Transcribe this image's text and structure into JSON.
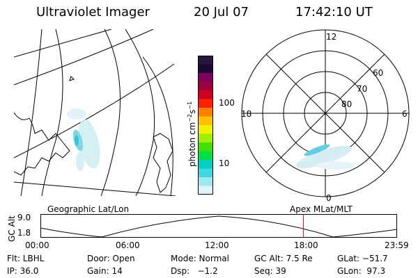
{
  "header": {
    "instrument": "Ultraviolet Imager",
    "date": "20 Jul 07",
    "time": "17:42:10 UT"
  },
  "left_panel": {
    "label": "Geographic Lat/Lon"
  },
  "colorbar": {
    "unit_label": "photon cm",
    "exp1": "−2",
    "s_label": "s",
    "exp2": "−1",
    "ticks": [
      "100",
      "10"
    ],
    "colors": [
      "#2a1540",
      "#1a0a30",
      "#800060",
      "#a00040",
      "#d00020",
      "#ff2000",
      "#ff8000",
      "#ffc000",
      "#f0f000",
      "#a0f000",
      "#40e000",
      "#00e040",
      "#00d0c0",
      "#40d8e0",
      "#a0e8f0",
      "#e0f4f8"
    ]
  },
  "right_panel": {
    "label": "Apex MLat/MLT",
    "mlt_labels": [
      "12",
      "18",
      "6",
      "0"
    ],
    "lat_labels": [
      "60",
      "70",
      "80"
    ]
  },
  "timeline": {
    "axis_label": "GC Alt",
    "y_ticks": [
      "9.0",
      "1.8"
    ],
    "x_ticks": [
      "00:00",
      "06:00",
      "12:00",
      "18:00",
      "23:59"
    ],
    "current_marker_hours": 17.7
  },
  "info": {
    "filter": "Flt: LBHL",
    "door": "Door: Open",
    "mode": "Mode: Normal",
    "gc_alt": "GC Alt: 7.5 Re",
    "glat": "GLat: −51.7",
    "ip": "IP: 36.0",
    "gain": "Gain: 14",
    "dsp": "Dsp:   −1.2",
    "seq": "Seq: 39",
    "glon": "GLon:  97.3"
  }
}
